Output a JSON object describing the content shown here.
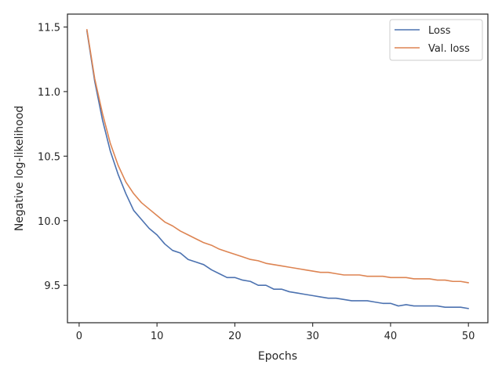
{
  "chart_data": {
    "type": "line",
    "title": "",
    "xlabel": "Epochs",
    "ylabel": "Negative log-likelihood",
    "xlim": [
      -1.5,
      52.5
    ],
    "ylim": [
      9.21,
      11.6
    ],
    "xticks": [
      0,
      10,
      20,
      30,
      40,
      50
    ],
    "xtick_labels": [
      "0",
      "10",
      "20",
      "30",
      "40",
      "50"
    ],
    "yticks": [
      9.5,
      10.0,
      10.5,
      11.0,
      11.5
    ],
    "ytick_labels": [
      "9.5",
      "10.0",
      "10.5",
      "11.0",
      "11.5"
    ],
    "grid": false,
    "legend_position": "top-right",
    "x": [
      1,
      2,
      3,
      4,
      5,
      6,
      7,
      8,
      9,
      10,
      11,
      12,
      13,
      14,
      15,
      16,
      17,
      18,
      19,
      20,
      21,
      22,
      23,
      24,
      25,
      26,
      27,
      28,
      29,
      30,
      31,
      32,
      33,
      34,
      35,
      36,
      37,
      38,
      39,
      40,
      41,
      42,
      43,
      44,
      45,
      46,
      47,
      48,
      49,
      50
    ],
    "series": [
      {
        "name": "Loss",
        "color": "#4c72b0",
        "values": [
          11.47,
          11.08,
          10.78,
          10.54,
          10.36,
          10.21,
          10.08,
          10.01,
          9.94,
          9.89,
          9.82,
          9.77,
          9.75,
          9.7,
          9.68,
          9.66,
          9.62,
          9.59,
          9.56,
          9.56,
          9.54,
          9.53,
          9.5,
          9.5,
          9.47,
          9.47,
          9.45,
          9.44,
          9.43,
          9.42,
          9.41,
          9.4,
          9.4,
          9.39,
          9.38,
          9.38,
          9.38,
          9.37,
          9.36,
          9.36,
          9.34,
          9.35,
          9.34,
          9.34,
          9.34,
          9.34,
          9.33,
          9.33,
          9.33,
          9.32
        ]
      },
      {
        "name": "Val. loss",
        "color": "#dd8452",
        "values": [
          11.48,
          11.1,
          10.83,
          10.6,
          10.43,
          10.3,
          10.21,
          10.14,
          10.09,
          10.04,
          9.99,
          9.96,
          9.92,
          9.89,
          9.86,
          9.83,
          9.81,
          9.78,
          9.76,
          9.74,
          9.72,
          9.7,
          9.69,
          9.67,
          9.66,
          9.65,
          9.64,
          9.63,
          9.62,
          9.61,
          9.6,
          9.6,
          9.59,
          9.58,
          9.58,
          9.58,
          9.57,
          9.57,
          9.57,
          9.56,
          9.56,
          9.56,
          9.55,
          9.55,
          9.55,
          9.54,
          9.54,
          9.53,
          9.53,
          9.52
        ]
      }
    ]
  }
}
